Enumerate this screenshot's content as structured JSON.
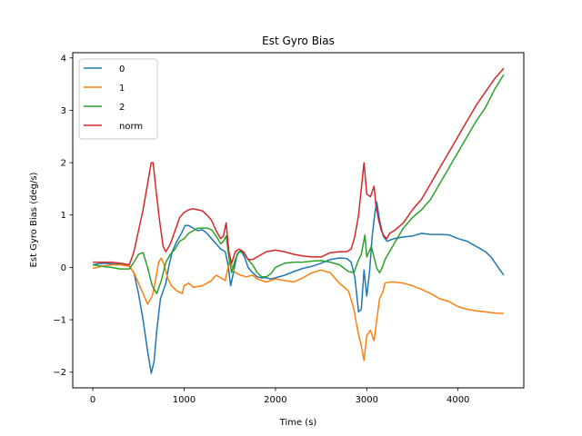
{
  "chart_data": {
    "type": "line",
    "title": "Est Gyro Bias",
    "xlabel": "Time (s)",
    "ylabel": "Est Gyro Bias (deg/s)",
    "xlim": [
      -220,
      4720
    ],
    "ylim": [
      -2.3,
      4.1
    ],
    "xticks": [
      0,
      1000,
      2000,
      3000,
      4000
    ],
    "xtick_labels": [
      "0",
      "1000",
      "2000",
      "3000",
      "4000"
    ],
    "yticks": [
      -2,
      -1,
      0,
      1,
      2,
      3,
      4
    ],
    "ytick_labels": [
      "−2",
      "−1",
      "0",
      "1",
      "2",
      "3",
      "4"
    ],
    "grid": false,
    "legend_position": "top-left",
    "series": [
      {
        "name": "0",
        "color": "#1f77b4",
        "points": [
          [
            0,
            0.05
          ],
          [
            100,
            0.08
          ],
          [
            200,
            0.07
          ],
          [
            300,
            0.06
          ],
          [
            400,
            0.02
          ],
          [
            450,
            -0.1
          ],
          [
            500,
            -0.5
          ],
          [
            550,
            -1.0
          ],
          [
            600,
            -1.6
          ],
          [
            640,
            -2.02
          ],
          [
            670,
            -1.8
          ],
          [
            700,
            -1.2
          ],
          [
            740,
            -0.6
          ],
          [
            780,
            -0.4
          ],
          [
            800,
            -0.3
          ],
          [
            830,
            0.0
          ],
          [
            870,
            0.3
          ],
          [
            920,
            0.5
          ],
          [
            970,
            0.65
          ],
          [
            1010,
            0.8
          ],
          [
            1050,
            0.8
          ],
          [
            1100,
            0.75
          ],
          [
            1150,
            0.7
          ],
          [
            1200,
            0.72
          ],
          [
            1250,
            0.65
          ],
          [
            1300,
            0.55
          ],
          [
            1350,
            0.45
          ],
          [
            1400,
            0.35
          ],
          [
            1450,
            0.3
          ],
          [
            1480,
            0.05
          ],
          [
            1510,
            -0.35
          ],
          [
            1540,
            -0.1
          ],
          [
            1580,
            0.25
          ],
          [
            1620,
            0.32
          ],
          [
            1660,
            0.2
          ],
          [
            1700,
            0.0
          ],
          [
            1750,
            -0.1
          ],
          [
            1800,
            -0.18
          ],
          [
            1850,
            -0.2
          ],
          [
            1900,
            -0.2
          ],
          [
            1950,
            -0.22
          ],
          [
            2000,
            -0.2
          ],
          [
            2100,
            -0.15
          ],
          [
            2200,
            -0.08
          ],
          [
            2300,
            -0.02
          ],
          [
            2400,
            0.02
          ],
          [
            2500,
            0.08
          ],
          [
            2600,
            0.15
          ],
          [
            2700,
            0.18
          ],
          [
            2780,
            0.17
          ],
          [
            2830,
            0.1
          ],
          [
            2870,
            -0.2
          ],
          [
            2910,
            -0.85
          ],
          [
            2940,
            -0.8
          ],
          [
            2970,
            -0.05
          ],
          [
            3000,
            -0.55
          ],
          [
            3030,
            -0.1
          ],
          [
            3060,
            0.6
          ],
          [
            3090,
            1.05
          ],
          [
            3110,
            1.25
          ],
          [
            3140,
            0.9
          ],
          [
            3180,
            0.6
          ],
          [
            3220,
            0.5
          ],
          [
            3300,
            0.55
          ],
          [
            3400,
            0.58
          ],
          [
            3500,
            0.6
          ],
          [
            3600,
            0.65
          ],
          [
            3700,
            0.63
          ],
          [
            3800,
            0.63
          ],
          [
            3900,
            0.62
          ],
          [
            4000,
            0.55
          ],
          [
            4100,
            0.5
          ],
          [
            4200,
            0.4
          ],
          [
            4300,
            0.3
          ],
          [
            4360,
            0.2
          ],
          [
            4420,
            0.05
          ],
          [
            4460,
            -0.05
          ],
          [
            4500,
            -0.15
          ]
        ]
      },
      {
        "name": "1",
        "color": "#ff7f0e",
        "points": [
          [
            0,
            -0.02
          ],
          [
            100,
            0.02
          ],
          [
            200,
            0.05
          ],
          [
            300,
            0.05
          ],
          [
            400,
            0.02
          ],
          [
            450,
            -0.1
          ],
          [
            500,
            -0.3
          ],
          [
            550,
            -0.5
          ],
          [
            600,
            -0.7
          ],
          [
            650,
            -0.55
          ],
          [
            680,
            -0.3
          ],
          [
            720,
            0.1
          ],
          [
            750,
            0.18
          ],
          [
            780,
            0.05
          ],
          [
            820,
            -0.2
          ],
          [
            860,
            -0.35
          ],
          [
            920,
            -0.45
          ],
          [
            980,
            -0.5
          ],
          [
            1000,
            -0.35
          ],
          [
            1050,
            -0.3
          ],
          [
            1100,
            -0.38
          ],
          [
            1200,
            -0.35
          ],
          [
            1300,
            -0.25
          ],
          [
            1350,
            -0.15
          ],
          [
            1400,
            -0.2
          ],
          [
            1450,
            -0.25
          ],
          [
            1500,
            0.15
          ],
          [
            1530,
            0.0
          ],
          [
            1560,
            -0.1
          ],
          [
            1620,
            -0.15
          ],
          [
            1680,
            -0.18
          ],
          [
            1750,
            -0.15
          ],
          [
            1800,
            -0.22
          ],
          [
            1900,
            -0.28
          ],
          [
            2000,
            -0.22
          ],
          [
            2100,
            -0.25
          ],
          [
            2200,
            -0.28
          ],
          [
            2300,
            -0.2
          ],
          [
            2400,
            -0.1
          ],
          [
            2500,
            -0.05
          ],
          [
            2600,
            -0.1
          ],
          [
            2700,
            -0.3
          ],
          [
            2800,
            -0.45
          ],
          [
            2860,
            -0.8
          ],
          [
            2900,
            -1.2
          ],
          [
            2940,
            -1.5
          ],
          [
            2970,
            -1.78
          ],
          [
            3000,
            -1.3
          ],
          [
            3040,
            -1.2
          ],
          [
            3080,
            -1.4
          ],
          [
            3110,
            -1.0
          ],
          [
            3140,
            -0.6
          ],
          [
            3180,
            -0.45
          ],
          [
            3200,
            -0.3
          ],
          [
            3250,
            -0.28
          ],
          [
            3300,
            -0.28
          ],
          [
            3400,
            -0.3
          ],
          [
            3500,
            -0.35
          ],
          [
            3600,
            -0.42
          ],
          [
            3700,
            -0.5
          ],
          [
            3800,
            -0.6
          ],
          [
            3900,
            -0.65
          ],
          [
            4000,
            -0.75
          ],
          [
            4100,
            -0.8
          ],
          [
            4200,
            -0.83
          ],
          [
            4300,
            -0.85
          ],
          [
            4400,
            -0.87
          ],
          [
            4500,
            -0.88
          ]
        ]
      },
      {
        "name": "2",
        "color": "#2ca02c",
        "points": [
          [
            0,
            0.05
          ],
          [
            100,
            0.02
          ],
          [
            200,
            0.0
          ],
          [
            300,
            -0.03
          ],
          [
            400,
            -0.03
          ],
          [
            450,
            0.1
          ],
          [
            500,
            0.25
          ],
          [
            550,
            0.28
          ],
          [
            600,
            0.0
          ],
          [
            650,
            -0.35
          ],
          [
            700,
            -0.5
          ],
          [
            750,
            -0.25
          ],
          [
            800,
            0.1
          ],
          [
            850,
            0.25
          ],
          [
            900,
            0.35
          ],
          [
            950,
            0.5
          ],
          [
            1000,
            0.55
          ],
          [
            1050,
            0.65
          ],
          [
            1100,
            0.7
          ],
          [
            1150,
            0.75
          ],
          [
            1200,
            0.75
          ],
          [
            1250,
            0.75
          ],
          [
            1300,
            0.72
          ],
          [
            1350,
            0.6
          ],
          [
            1400,
            0.45
          ],
          [
            1430,
            0.5
          ],
          [
            1460,
            0.6
          ],
          [
            1490,
            0.2
          ],
          [
            1520,
            -0.1
          ],
          [
            1560,
            0.15
          ],
          [
            1600,
            0.3
          ],
          [
            1650,
            0.28
          ],
          [
            1700,
            0.15
          ],
          [
            1750,
            0.05
          ],
          [
            1800,
            -0.1
          ],
          [
            1850,
            -0.18
          ],
          [
            1900,
            -0.18
          ],
          [
            1950,
            -0.12
          ],
          [
            2000,
            0.0
          ],
          [
            2100,
            0.08
          ],
          [
            2200,
            0.1
          ],
          [
            2300,
            0.1
          ],
          [
            2400,
            0.12
          ],
          [
            2500,
            0.13
          ],
          [
            2600,
            0.1
          ],
          [
            2700,
            0.05
          ],
          [
            2800,
            -0.08
          ],
          [
            2860,
            -0.1
          ],
          [
            2900,
            0.1
          ],
          [
            2940,
            0.25
          ],
          [
            2980,
            0.62
          ],
          [
            3000,
            0.2
          ],
          [
            3050,
            0.4
          ],
          [
            3080,
            0.2
          ],
          [
            3110,
            -0.02
          ],
          [
            3140,
            -0.1
          ],
          [
            3170,
            0.0
          ],
          [
            3200,
            0.15
          ],
          [
            3250,
            0.3
          ],
          [
            3300,
            0.45
          ],
          [
            3400,
            0.75
          ],
          [
            3500,
            0.95
          ],
          [
            3600,
            1.1
          ],
          [
            3700,
            1.3
          ],
          [
            3800,
            1.6
          ],
          [
            3900,
            1.9
          ],
          [
            4000,
            2.2
          ],
          [
            4100,
            2.5
          ],
          [
            4200,
            2.8
          ],
          [
            4300,
            3.05
          ],
          [
            4400,
            3.4
          ],
          [
            4500,
            3.68
          ]
        ]
      },
      {
        "name": "norm",
        "color": "#d62728",
        "points": [
          [
            0,
            0.1
          ],
          [
            100,
            0.1
          ],
          [
            200,
            0.1
          ],
          [
            300,
            0.08
          ],
          [
            400,
            0.05
          ],
          [
            450,
            0.3
          ],
          [
            500,
            0.7
          ],
          [
            550,
            1.1
          ],
          [
            600,
            1.6
          ],
          [
            640,
            2.0
          ],
          [
            660,
            2.0
          ],
          [
            690,
            1.5
          ],
          [
            730,
            0.9
          ],
          [
            770,
            0.4
          ],
          [
            800,
            0.3
          ],
          [
            850,
            0.45
          ],
          [
            900,
            0.7
          ],
          [
            950,
            0.95
          ],
          [
            1000,
            1.05
          ],
          [
            1050,
            1.1
          ],
          [
            1100,
            1.12
          ],
          [
            1150,
            1.1
          ],
          [
            1200,
            1.08
          ],
          [
            1250,
            1.0
          ],
          [
            1300,
            0.9
          ],
          [
            1350,
            0.7
          ],
          [
            1400,
            0.55
          ],
          [
            1430,
            0.6
          ],
          [
            1460,
            0.85
          ],
          [
            1490,
            0.3
          ],
          [
            1520,
            0.08
          ],
          [
            1560,
            0.3
          ],
          [
            1600,
            0.35
          ],
          [
            1650,
            0.3
          ],
          [
            1700,
            0.15
          ],
          [
            1750,
            0.15
          ],
          [
            1800,
            0.2
          ],
          [
            1850,
            0.25
          ],
          [
            1900,
            0.3
          ],
          [
            2000,
            0.33
          ],
          [
            2100,
            0.3
          ],
          [
            2200,
            0.25
          ],
          [
            2300,
            0.22
          ],
          [
            2400,
            0.2
          ],
          [
            2500,
            0.2
          ],
          [
            2600,
            0.28
          ],
          [
            2700,
            0.3
          ],
          [
            2780,
            0.3
          ],
          [
            2830,
            0.35
          ],
          [
            2870,
            0.6
          ],
          [
            2910,
            1.0
          ],
          [
            2940,
            1.5
          ],
          [
            2970,
            2.0
          ],
          [
            3000,
            1.4
          ],
          [
            3040,
            1.35
          ],
          [
            3080,
            1.55
          ],
          [
            3100,
            1.2
          ],
          [
            3130,
            0.9
          ],
          [
            3160,
            0.7
          ],
          [
            3190,
            0.6
          ],
          [
            3220,
            0.55
          ],
          [
            3250,
            0.65
          ],
          [
            3300,
            0.7
          ],
          [
            3400,
            0.85
          ],
          [
            3500,
            1.1
          ],
          [
            3600,
            1.3
          ],
          [
            3700,
            1.6
          ],
          [
            3800,
            1.9
          ],
          [
            3900,
            2.2
          ],
          [
            4000,
            2.5
          ],
          [
            4100,
            2.8
          ],
          [
            4200,
            3.1
          ],
          [
            4300,
            3.35
          ],
          [
            4400,
            3.6
          ],
          [
            4500,
            3.8
          ]
        ]
      }
    ]
  }
}
